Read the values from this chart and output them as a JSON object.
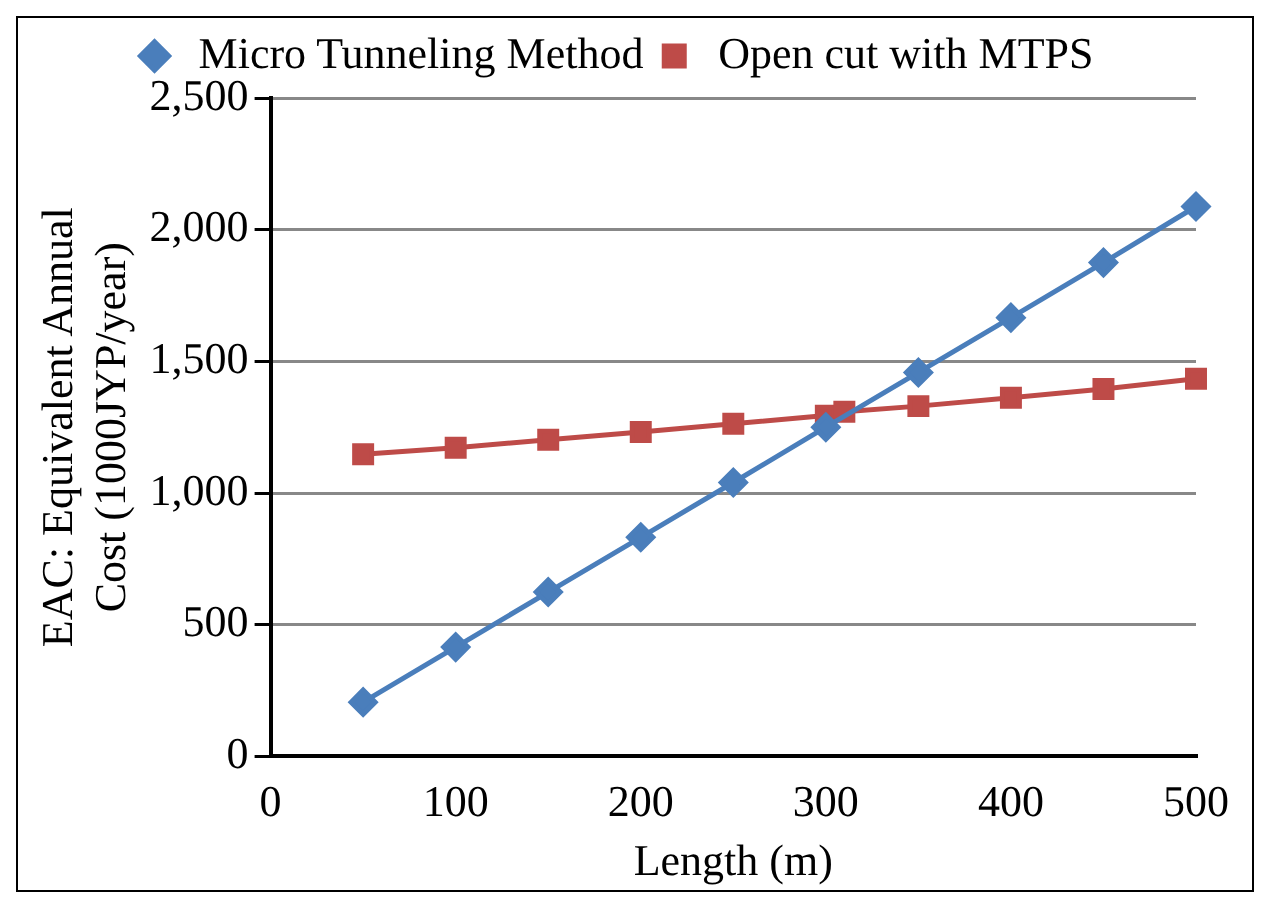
{
  "chart_data": {
    "type": "line",
    "xlabel": "Length (m)",
    "ylabel": "EAC: Equivalent Annual Cost (1000JYP/year)",
    "xlim": [
      0,
      500
    ],
    "xticks": [
      0,
      100,
      200,
      300,
      400,
      500
    ],
    "ylim": [
      0,
      2500
    ],
    "yticks": [
      0,
      {
        "value": 500,
        "label": "500"
      },
      {
        "value": 1000,
        "label": "1,000"
      },
      {
        "value": 1500,
        "label": "1,500"
      },
      {
        "value": 2000,
        "label": "2,000"
      },
      {
        "value": 2500,
        "label": "2,500"
      }
    ],
    "grid": "y",
    "legend": "top",
    "series": [
      {
        "name": "Micro Tunneling Method",
        "color": "#4a7ebb",
        "marker": "diamond",
        "x": [
          50,
          100,
          150,
          200,
          250,
          300,
          350,
          400,
          450,
          500
        ],
        "values": [
          206,
          415,
          624,
          832,
          1040,
          1250,
          1458,
          1666,
          1875,
          2088
        ]
      },
      {
        "name": "Open cut with MTPS",
        "color": "#be4b48",
        "marker": "square",
        "x": [
          50,
          100,
          150,
          200,
          250,
          300,
          310,
          350,
          400,
          450,
          500
        ],
        "values": [
          1147,
          1172,
          1202,
          1232,
          1263,
          1294,
          1309,
          1330,
          1362,
          1395,
          1434
        ]
      }
    ]
  }
}
